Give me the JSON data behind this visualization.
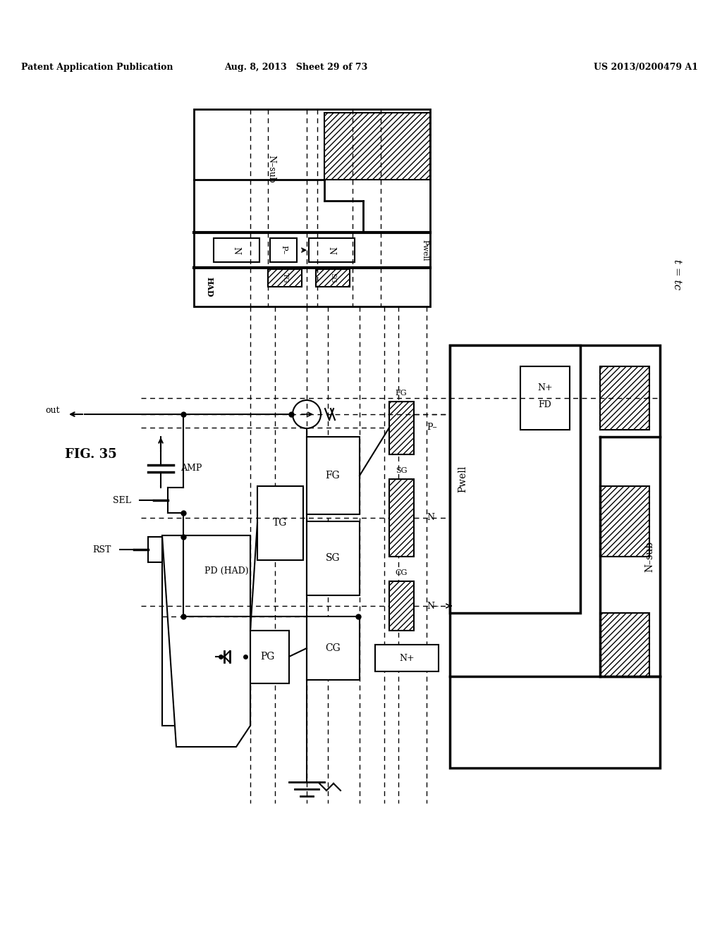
{
  "header_left": "Patent Application Publication",
  "header_mid": "Aug. 8, 2013   Sheet 29 of 73",
  "header_right": "US 2013/0200479 A1",
  "fig_label": "FIG. 35",
  "time_label": "t = tc",
  "bg": "#ffffff"
}
